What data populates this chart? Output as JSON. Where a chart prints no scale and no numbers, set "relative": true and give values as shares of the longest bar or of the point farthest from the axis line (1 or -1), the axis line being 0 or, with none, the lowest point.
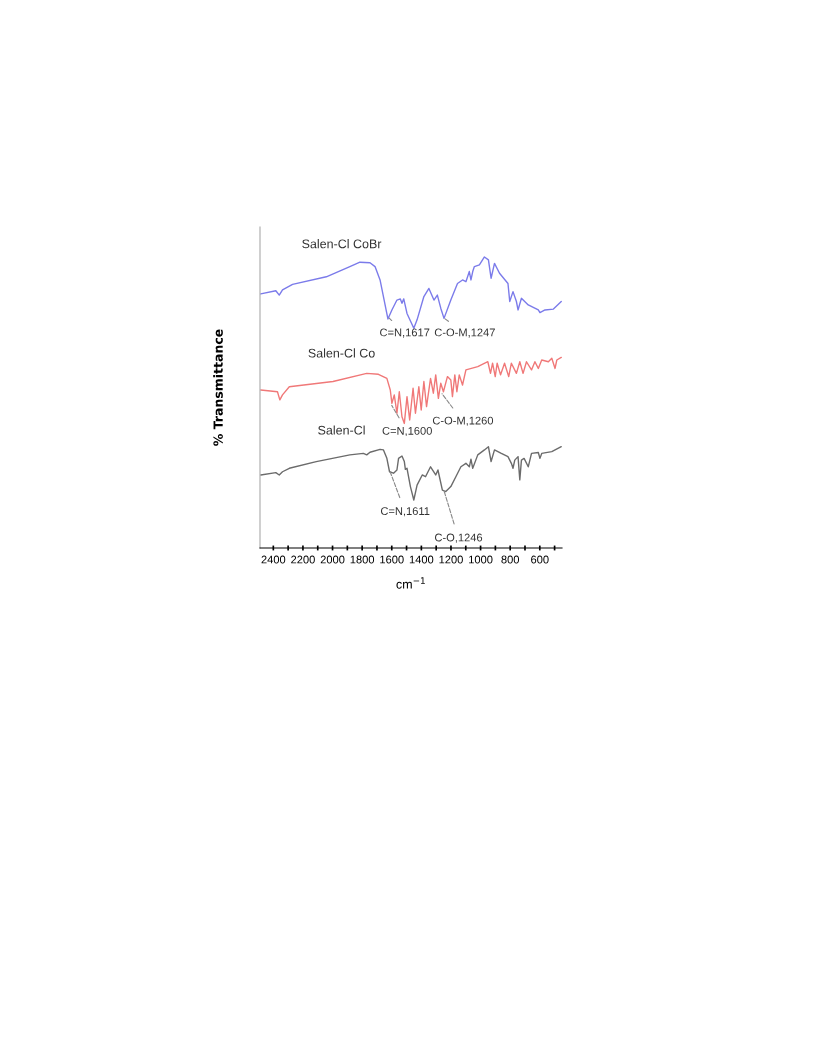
{
  "chart_data": {
    "type": "line",
    "relative": true,
    "xlabel": "cm$^{−1}$",
    "ylabel": "% Transmittance",
    "tick_labels": "x",
    "grid": false,
    "marker": "none",
    "line_style": "solid",
    "xlim": [
      2490,
      450
    ],
    "xticks": [
      2400,
      {
        "value": 2300,
        "label": null
      },
      2200,
      {
        "value": 2100,
        "label": null
      },
      2000,
      {
        "value": 1900,
        "label": null
      },
      1800,
      {
        "value": 1700,
        "label": null
      },
      1600,
      {
        "value": 1500,
        "label": null
      },
      1400,
      {
        "value": 1300,
        "label": null
      },
      1200,
      {
        "value": 1100,
        "label": null
      },
      1000,
      {
        "value": 900,
        "label": null
      },
      800,
      {
        "value": 700,
        "label": null
      },
      600,
      {
        "value": 500,
        "label": null
      }
    ],
    "series": [
      {
        "name": "Salen-Cl CoBr",
        "color": "#7b7bea",
        "x": [
          2485,
          2383,
          2360,
          2338,
          2270,
          2042,
          1883,
          1815,
          1747,
          1713,
          1679,
          1626,
          1599,
          1565,
          1542,
          1531,
          1519,
          1497,
          1451,
          1429,
          1383,
          1349,
          1315,
          1292,
          1269,
          1247,
          1201,
          1156,
          1122,
          1099,
          1076,
          1065,
          1053,
          1042,
          1008,
          974,
          947,
          929,
          906,
          872,
          815,
          803,
          781,
          758,
          747,
          724,
          678,
          610,
          599,
          565,
          508,
          455
        ],
        "values": [
          0.873,
          0.884,
          0.869,
          0.887,
          0.906,
          0.932,
          0.967,
          0.982,
          0.98,
          0.967,
          0.921,
          0.787,
          0.818,
          0.852,
          0.856,
          0.841,
          0.856,
          0.806,
          0.755,
          0.784,
          0.864,
          0.892,
          0.852,
          0.869,
          0.824,
          0.789,
          0.852,
          0.909,
          0.921,
          0.915,
          0.95,
          0.921,
          0.95,
          0.967,
          0.973,
          1,
          0.99,
          0.927,
          0.978,
          0.944,
          0.909,
          0.847,
          0.881,
          0.847,
          0.818,
          0.858,
          0.835,
          0.818,
          0.809,
          0.818,
          0.821,
          0.847
        ]
      },
      {
        "name": "Salen-Cl Co",
        "color": "#f07878",
        "x": [
          2485,
          2372,
          2356,
          2338,
          2292,
          1997,
          1769,
          1690,
          1633,
          1610,
          1599,
          1583,
          1565,
          1549,
          1531,
          1515,
          1497,
          1479,
          1456,
          1440,
          1417,
          1401,
          1383,
          1365,
          1338,
          1319,
          1303,
          1285,
          1269,
          1251,
          1224,
          1201,
          1190,
          1174,
          1160,
          1144,
          1122,
          1099,
          1019,
          951,
          933,
          919,
          901,
          888,
          865,
          838,
          810,
          792,
          758,
          735,
          713,
          690,
          656,
          633,
          610,
          587,
          542,
          519,
          497,
          485,
          455
        ],
        "values": [
          0.543,
          0.537,
          0.509,
          0.526,
          0.554,
          0.572,
          0.6,
          0.597,
          0.583,
          0.543,
          0.497,
          0.526,
          0.463,
          0.537,
          0.451,
          0.428,
          0.52,
          0.44,
          0.549,
          0.463,
          0.554,
          0.474,
          0.572,
          0.486,
          0.583,
          0.532,
          0.595,
          0.514,
          0.566,
          0.537,
          0.589,
          0.577,
          0.52,
          0.595,
          0.537,
          0.595,
          0.56,
          0.612,
          0.623,
          0.64,
          0.6,
          0.635,
          0.589,
          0.635,
          0.595,
          0.635,
          0.589,
          0.635,
          0.6,
          0.64,
          0.6,
          0.64,
          0.612,
          0.64,
          0.617,
          0.646,
          0.64,
          0.652,
          0.617,
          0.646,
          0.655
        ]
      },
      {
        "name": "Salen-Cl",
        "color": "#6b6b6b",
        "x": [
          2485,
          2383,
          2360,
          2338,
          2292,
          2110,
          1883,
          1792,
          1769,
          1747,
          1679,
          1656,
          1633,
          1615,
          1588,
          1565,
          1554,
          1531,
          1515,
          1508,
          1497,
          1474,
          1451,
          1429,
          1394,
          1372,
          1338,
          1303,
          1288,
          1258,
          1235,
          1201,
          1167,
          1133,
          1099,
          1076,
          1065,
          1053,
          1019,
          974,
          947,
          929,
          906,
          860,
          815,
          792,
          781,
          769,
          747,
          735,
          724,
          706,
          678,
          656,
          610,
          599,
          587,
          519,
          455
        ],
        "values": [
          0.251,
          0.259,
          0.251,
          0.262,
          0.274,
          0.297,
          0.32,
          0.325,
          0.32,
          0.329,
          0.339,
          0.337,
          0.308,
          0.262,
          0.257,
          0.268,
          0.308,
          0.316,
          0.297,
          0.27,
          0.274,
          0.211,
          0.165,
          0.216,
          0.251,
          0.245,
          0.279,
          0.251,
          0.268,
          0.199,
          0.194,
          0.211,
          0.245,
          0.279,
          0.291,
          0.279,
          0.305,
          0.274,
          0.32,
          0.337,
          0.348,
          0.297,
          0.337,
          0.325,
          0.314,
          0.291,
          0.274,
          0.302,
          0.314,
          0.234,
          0.302,
          0.308,
          0.279,
          0.325,
          0.328,
          0.308,
          0.325,
          0.331,
          0.348
        ]
      }
    ],
    "annotations": [
      {
        "text": "C=N,1617",
        "x": 1617,
        "y": 0.79
      },
      {
        "text": "C-O-M,1247",
        "x": 1247,
        "y": 0.79
      },
      {
        "text": "C=N,1600",
        "x": 1600,
        "y": 0.49
      },
      {
        "text": "C-O-M,1260",
        "x": 1260,
        "y": 0.53
      },
      {
        "text": "C=N,1611",
        "x": 1611,
        "y": 0.262
      },
      {
        "text": "C-O,1246",
        "x": 1246,
        "y": 0.195
      }
    ]
  }
}
